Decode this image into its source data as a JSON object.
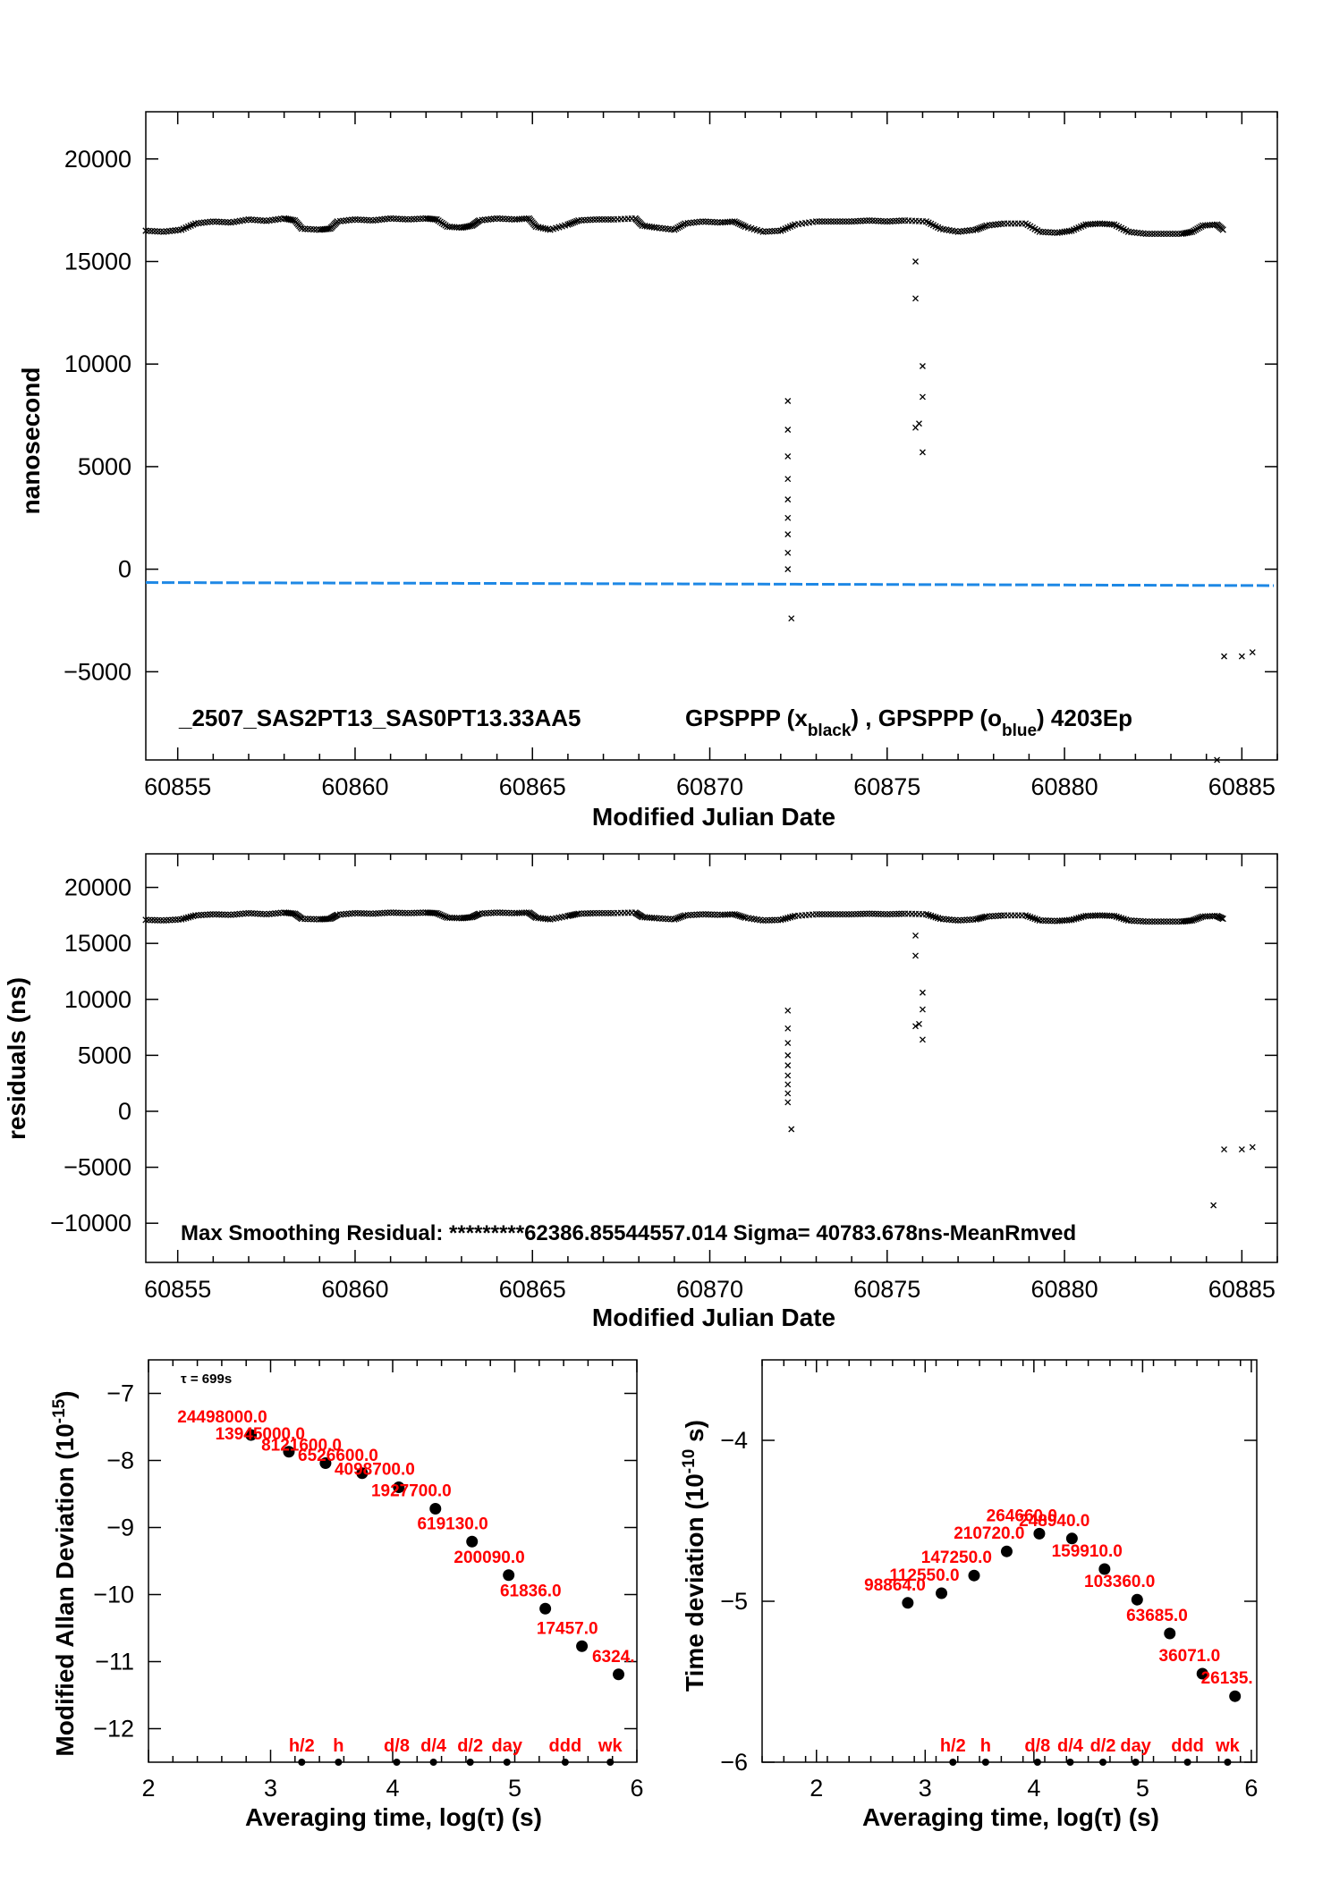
{
  "chart_data": [
    {
      "type": "scatter",
      "title": "_2507_SAS2PT13_SAS0PT13.33AA5",
      "legend_text": {
        "prefix": "GPSPPP (x",
        "black_sub": "black",
        "middle": ") ,  GPSPPP (o",
        "blue_sub": "blue",
        "suffix": ")  4203Ep"
      },
      "xlabel": "Modified Julian Date",
      "ylabel": "nanosecond",
      "xlim": [
        60854.1,
        60886.0
      ],
      "ylim": [
        -9300,
        22300
      ],
      "xticks": [
        60855,
        60860,
        60865,
        60870,
        60875,
        60880,
        60885
      ],
      "yticks": [
        -5000,
        0,
        5000,
        10000,
        15000,
        20000
      ],
      "series": [
        {
          "color": "#000000",
          "marker": "x",
          "values": [
            [
              60854.1,
              16500
            ],
            [
              60854.6,
              16450
            ],
            [
              60855.1,
              16550
            ],
            [
              60855.5,
              16850
            ],
            [
              60856.0,
              16950
            ],
            [
              60856.5,
              16900
            ],
            [
              60857.0,
              17050
            ],
            [
              60857.5,
              16980
            ],
            [
              60858.0,
              17100
            ],
            [
              60858.3,
              17000
            ],
            [
              60858.5,
              16600
            ],
            [
              60859.0,
              16550
            ],
            [
              60859.3,
              16600
            ],
            [
              60859.5,
              16950
            ],
            [
              60860.0,
              17050
            ],
            [
              60860.5,
              17000
            ],
            [
              60861.0,
              17100
            ],
            [
              60861.5,
              17050
            ],
            [
              60862.0,
              17100
            ],
            [
              60862.3,
              17050
            ],
            [
              60862.6,
              16700
            ],
            [
              60863.0,
              16650
            ],
            [
              60863.3,
              16750
            ],
            [
              60863.5,
              17000
            ],
            [
              60864.0,
              17100
            ],
            [
              60864.5,
              17050
            ],
            [
              60864.9,
              17100
            ],
            [
              60865.1,
              16700
            ],
            [
              60865.5,
              16550
            ],
            [
              60866.0,
              16800
            ],
            [
              60866.3,
              17000
            ],
            [
              60866.8,
              17050
            ],
            [
              60867.3,
              17050
            ],
            [
              60867.9,
              17100
            ],
            [
              60868.1,
              16750
            ],
            [
              60868.5,
              16650
            ],
            [
              60869.0,
              16550
            ],
            [
              60869.3,
              16850
            ],
            [
              60869.8,
              16950
            ],
            [
              60870.3,
              16900
            ],
            [
              60870.7,
              16950
            ],
            [
              60871.0,
              16700
            ],
            [
              60871.5,
              16450
            ],
            [
              60872.0,
              16500
            ],
            [
              60872.4,
              16800
            ],
            [
              60873.0,
              16950
            ],
            [
              60873.5,
              16950
            ],
            [
              60874.0,
              16950
            ],
            [
              60874.5,
              17000
            ],
            [
              60875.0,
              16950
            ],
            [
              60875.5,
              17000
            ],
            [
              60876.1,
              16950
            ],
            [
              60876.5,
              16600
            ],
            [
              60877.0,
              16450
            ],
            [
              60877.5,
              16550
            ],
            [
              60877.8,
              16750
            ],
            [
              60878.3,
              16850
            ],
            [
              60878.9,
              16850
            ],
            [
              60879.3,
              16450
            ],
            [
              60879.8,
              16400
            ],
            [
              60880.2,
              16500
            ],
            [
              60880.6,
              16800
            ],
            [
              60881.0,
              16850
            ],
            [
              60881.4,
              16800
            ],
            [
              60881.8,
              16450
            ],
            [
              60882.3,
              16350
            ],
            [
              60882.8,
              16350
            ],
            [
              60883.3,
              16350
            ],
            [
              60883.6,
              16450
            ],
            [
              60883.9,
              16750
            ],
            [
              60884.3,
              16800
            ],
            [
              60884.5,
              16500
            ],
            [
              60872.2,
              8200
            ],
            [
              60872.2,
              6800
            ],
            [
              60872.2,
              5500
            ],
            [
              60872.2,
              4400
            ],
            [
              60872.2,
              3400
            ],
            [
              60872.2,
              2500
            ],
            [
              60872.2,
              1700
            ],
            [
              60872.2,
              800
            ],
            [
              60872.2,
              0
            ],
            [
              60872.3,
              -2400
            ],
            [
              60875.8,
              15000
            ],
            [
              60875.8,
              13200
            ],
            [
              60876.0,
              9900
            ],
            [
              60876.0,
              8400
            ],
            [
              60875.9,
              7100
            ],
            [
              60875.8,
              6900
            ],
            [
              60876.0,
              5700
            ],
            [
              60884.5,
              -4250
            ],
            [
              60885.0,
              -4250
            ],
            [
              60885.3,
              -4050
            ],
            [
              60884.3,
              -9300
            ]
          ]
        },
        {
          "color": "#1e88e5",
          "marker": "o",
          "values": [
            [
              60854.1,
              -650
            ],
            [
              60870.0,
              -720
            ],
            [
              60885.9,
              -800
            ]
          ]
        }
      ]
    },
    {
      "type": "scatter",
      "annotation": "Max Smoothing Residual: *********62386.85544557.014  Sigma= 40783.678ns-MeanRmved",
      "xlabel": "Modified Julian Date",
      "ylabel": "residuals (ns)",
      "xlim": [
        60854.1,
        60886.0
      ],
      "ylim": [
        -13500,
        23000
      ],
      "xticks": [
        60855,
        60860,
        60865,
        60870,
        60875,
        60880,
        60885
      ],
      "yticks": [
        -10000,
        -5000,
        0,
        5000,
        10000,
        15000,
        20000
      ],
      "series": [
        {
          "color": "#000000",
          "marker": "x",
          "values": [
            [
              60854.1,
              17100
            ],
            [
              60854.6,
              17050
            ],
            [
              60855.1,
              17150
            ],
            [
              60855.5,
              17500
            ],
            [
              60856.0,
              17600
            ],
            [
              60856.5,
              17550
            ],
            [
              60857.0,
              17700
            ],
            [
              60857.5,
              17600
            ],
            [
              60858.0,
              17750
            ],
            [
              60858.3,
              17650
            ],
            [
              60858.5,
              17200
            ],
            [
              60859.0,
              17150
            ],
            [
              60859.3,
              17200
            ],
            [
              60859.5,
              17550
            ],
            [
              60860.0,
              17700
            ],
            [
              60860.5,
              17650
            ],
            [
              60861.0,
              17750
            ],
            [
              60861.5,
              17700
            ],
            [
              60862.0,
              17750
            ],
            [
              60862.3,
              17700
            ],
            [
              60862.6,
              17300
            ],
            [
              60863.0,
              17250
            ],
            [
              60863.3,
              17350
            ],
            [
              60863.5,
              17650
            ],
            [
              60864.0,
              17750
            ],
            [
              60864.5,
              17700
            ],
            [
              60864.9,
              17750
            ],
            [
              60865.1,
              17300
            ],
            [
              60865.5,
              17150
            ],
            [
              60866.0,
              17450
            ],
            [
              60866.3,
              17650
            ],
            [
              60866.8,
              17700
            ],
            [
              60867.3,
              17700
            ],
            [
              60867.9,
              17750
            ],
            [
              60868.1,
              17350
            ],
            [
              60868.5,
              17250
            ],
            [
              60869.0,
              17150
            ],
            [
              60869.3,
              17500
            ],
            [
              60869.8,
              17600
            ],
            [
              60870.3,
              17550
            ],
            [
              60870.7,
              17600
            ],
            [
              60871.0,
              17300
            ],
            [
              60871.5,
              17050
            ],
            [
              60872.0,
              17100
            ],
            [
              60872.4,
              17450
            ],
            [
              60873.0,
              17600
            ],
            [
              60873.5,
              17600
            ],
            [
              60874.0,
              17600
            ],
            [
              60874.5,
              17650
            ],
            [
              60875.0,
              17600
            ],
            [
              60875.5,
              17650
            ],
            [
              60876.1,
              17600
            ],
            [
              60876.5,
              17200
            ],
            [
              60877.0,
              17050
            ],
            [
              60877.5,
              17150
            ],
            [
              60877.8,
              17400
            ],
            [
              60878.3,
              17500
            ],
            [
              60878.9,
              17500
            ],
            [
              60879.3,
              17050
            ],
            [
              60879.8,
              17000
            ],
            [
              60880.2,
              17100
            ],
            [
              60880.6,
              17450
            ],
            [
              60881.0,
              17500
            ],
            [
              60881.4,
              17450
            ],
            [
              60881.8,
              17050
            ],
            [
              60882.3,
              16950
            ],
            [
              60882.8,
              16950
            ],
            [
              60883.3,
              16950
            ],
            [
              60883.6,
              17050
            ],
            [
              60883.9,
              17400
            ],
            [
              60884.3,
              17450
            ],
            [
              60884.5,
              17150
            ],
            [
              60872.2,
              9000
            ],
            [
              60872.2,
              7400
            ],
            [
              60872.2,
              6100
            ],
            [
              60872.2,
              5000
            ],
            [
              60872.2,
              4100
            ],
            [
              60872.2,
              3200
            ],
            [
              60872.2,
              2400
            ],
            [
              60872.2,
              1600
            ],
            [
              60872.2,
              800
            ],
            [
              60872.3,
              -1600
            ],
            [
              60875.8,
              15700
            ],
            [
              60875.8,
              13900
            ],
            [
              60876.0,
              10600
            ],
            [
              60876.0,
              9100
            ],
            [
              60875.9,
              7800
            ],
            [
              60875.8,
              7600
            ],
            [
              60876.0,
              6400
            ],
            [
              60884.5,
              -3400
            ],
            [
              60885.0,
              -3400
            ],
            [
              60885.3,
              -3200
            ],
            [
              60884.2,
              -8400
            ]
          ]
        }
      ]
    },
    {
      "type": "scatter",
      "tau_label": "τ = 699s",
      "xlabel": "Averaging time, log(τ) (s)",
      "ylabel": "Modified Allan Deviation (10",
      "ylabel_sup": "-15",
      "ylabel_end": ")",
      "xlim": [
        2,
        6
      ],
      "ylim": [
        -12.5,
        -6.5
      ],
      "xticks": [
        2,
        3,
        4,
        5,
        6
      ],
      "yticks": [
        -12,
        -11,
        -10,
        -9,
        -8,
        -7
      ],
      "points": [
        {
          "x": 2.84,
          "y": -7.62,
          "label": "24498000.0"
        },
        {
          "x": 3.15,
          "y": -7.87,
          "label": "13945000.0"
        },
        {
          "x": 3.45,
          "y": -8.04,
          "label": "8121600.0"
        },
        {
          "x": 3.75,
          "y": -8.19,
          "label": "6526600.0"
        },
        {
          "x": 4.05,
          "y": -8.4,
          "label": "4098700.0"
        },
        {
          "x": 4.35,
          "y": -8.72,
          "label": "1927700.0"
        },
        {
          "x": 4.65,
          "y": -9.21,
          "label": "619130.0"
        },
        {
          "x": 4.95,
          "y": -9.71,
          "label": "200090.0"
        },
        {
          "x": 5.25,
          "y": -10.21,
          "label": "61836.0"
        },
        {
          "x": 5.55,
          "y": -10.77,
          "label": "17457.0"
        },
        {
          "x": 5.85,
          "y": -11.19,
          "label": "6324."
        }
      ],
      "markers": [
        {
          "x": 3.255,
          "label": "h/2"
        },
        {
          "x": 3.556,
          "label": "h"
        },
        {
          "x": 4.033,
          "label": "d/8"
        },
        {
          "x": 4.334,
          "label": "d/4"
        },
        {
          "x": 4.635,
          "label": "d/2"
        },
        {
          "x": 4.936,
          "label": "day"
        },
        {
          "x": 5.413,
          "label": "ddd"
        },
        {
          "x": 5.782,
          "label": "wk"
        }
      ]
    },
    {
      "type": "scatter",
      "xlabel": "Averaging time, log(τ) (s)",
      "ylabel": "Time deviation (10",
      "ylabel_sup": "-10",
      "ylabel_end": " s)",
      "xlim": [
        1.5,
        6.05
      ],
      "ylim": [
        -6,
        -3.5
      ],
      "xticks": [
        2,
        3,
        4,
        5,
        6
      ],
      "yticks": [
        -6,
        -5,
        -4
      ],
      "points": [
        {
          "x": 2.84,
          "y": -5.01,
          "label": "98864.0"
        },
        {
          "x": 3.15,
          "y": -4.95,
          "label": "112550.0"
        },
        {
          "x": 3.45,
          "y": -4.84,
          "label": "147250.0"
        },
        {
          "x": 3.75,
          "y": -4.69,
          "label": "210720.0"
        },
        {
          "x": 4.05,
          "y": -4.58,
          "label": "264660.0"
        },
        {
          "x": 4.35,
          "y": -4.61,
          "label": "248940.0"
        },
        {
          "x": 4.65,
          "y": -4.8,
          "label": "159910.0"
        },
        {
          "x": 4.95,
          "y": -4.99,
          "label": "103360.0"
        },
        {
          "x": 5.25,
          "y": -5.2,
          "label": "63685.0"
        },
        {
          "x": 5.55,
          "y": -5.45,
          "label": "36071.0"
        },
        {
          "x": 5.85,
          "y": -5.59,
          "label": "26135."
        }
      ],
      "markers": [
        {
          "x": 3.255,
          "label": "h/2"
        },
        {
          "x": 3.556,
          "label": "h"
        },
        {
          "x": 4.033,
          "label": "d/8"
        },
        {
          "x": 4.334,
          "label": "d/4"
        },
        {
          "x": 4.635,
          "label": "d/2"
        },
        {
          "x": 4.936,
          "label": "day"
        },
        {
          "x": 5.413,
          "label": "ddd"
        },
        {
          "x": 5.782,
          "label": "wk"
        }
      ]
    }
  ]
}
